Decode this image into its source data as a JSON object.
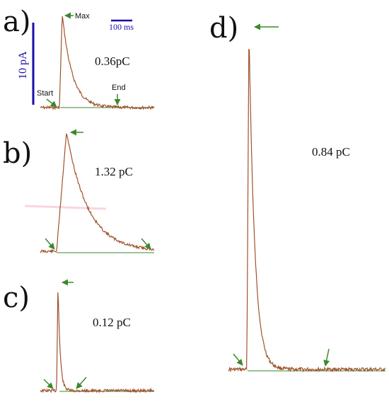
{
  "figure": {
    "panel_labels": [
      "a)",
      "b)",
      "c)",
      "d)"
    ],
    "charges": {
      "a": "0.36pC",
      "b": "1.32 pC",
      "c": "0.12 pC",
      "d": "0.84 pC"
    },
    "annotations": {
      "max": "Max",
      "start": "Start",
      "end": "End"
    },
    "scale_bars": {
      "time": "100 ms",
      "current": "10 pA"
    },
    "colors": {
      "trace": "#a0522d",
      "arrow": "#3a8a2a",
      "scale": "#1a0dab",
      "glow": "#f4c6d4"
    }
  }
}
